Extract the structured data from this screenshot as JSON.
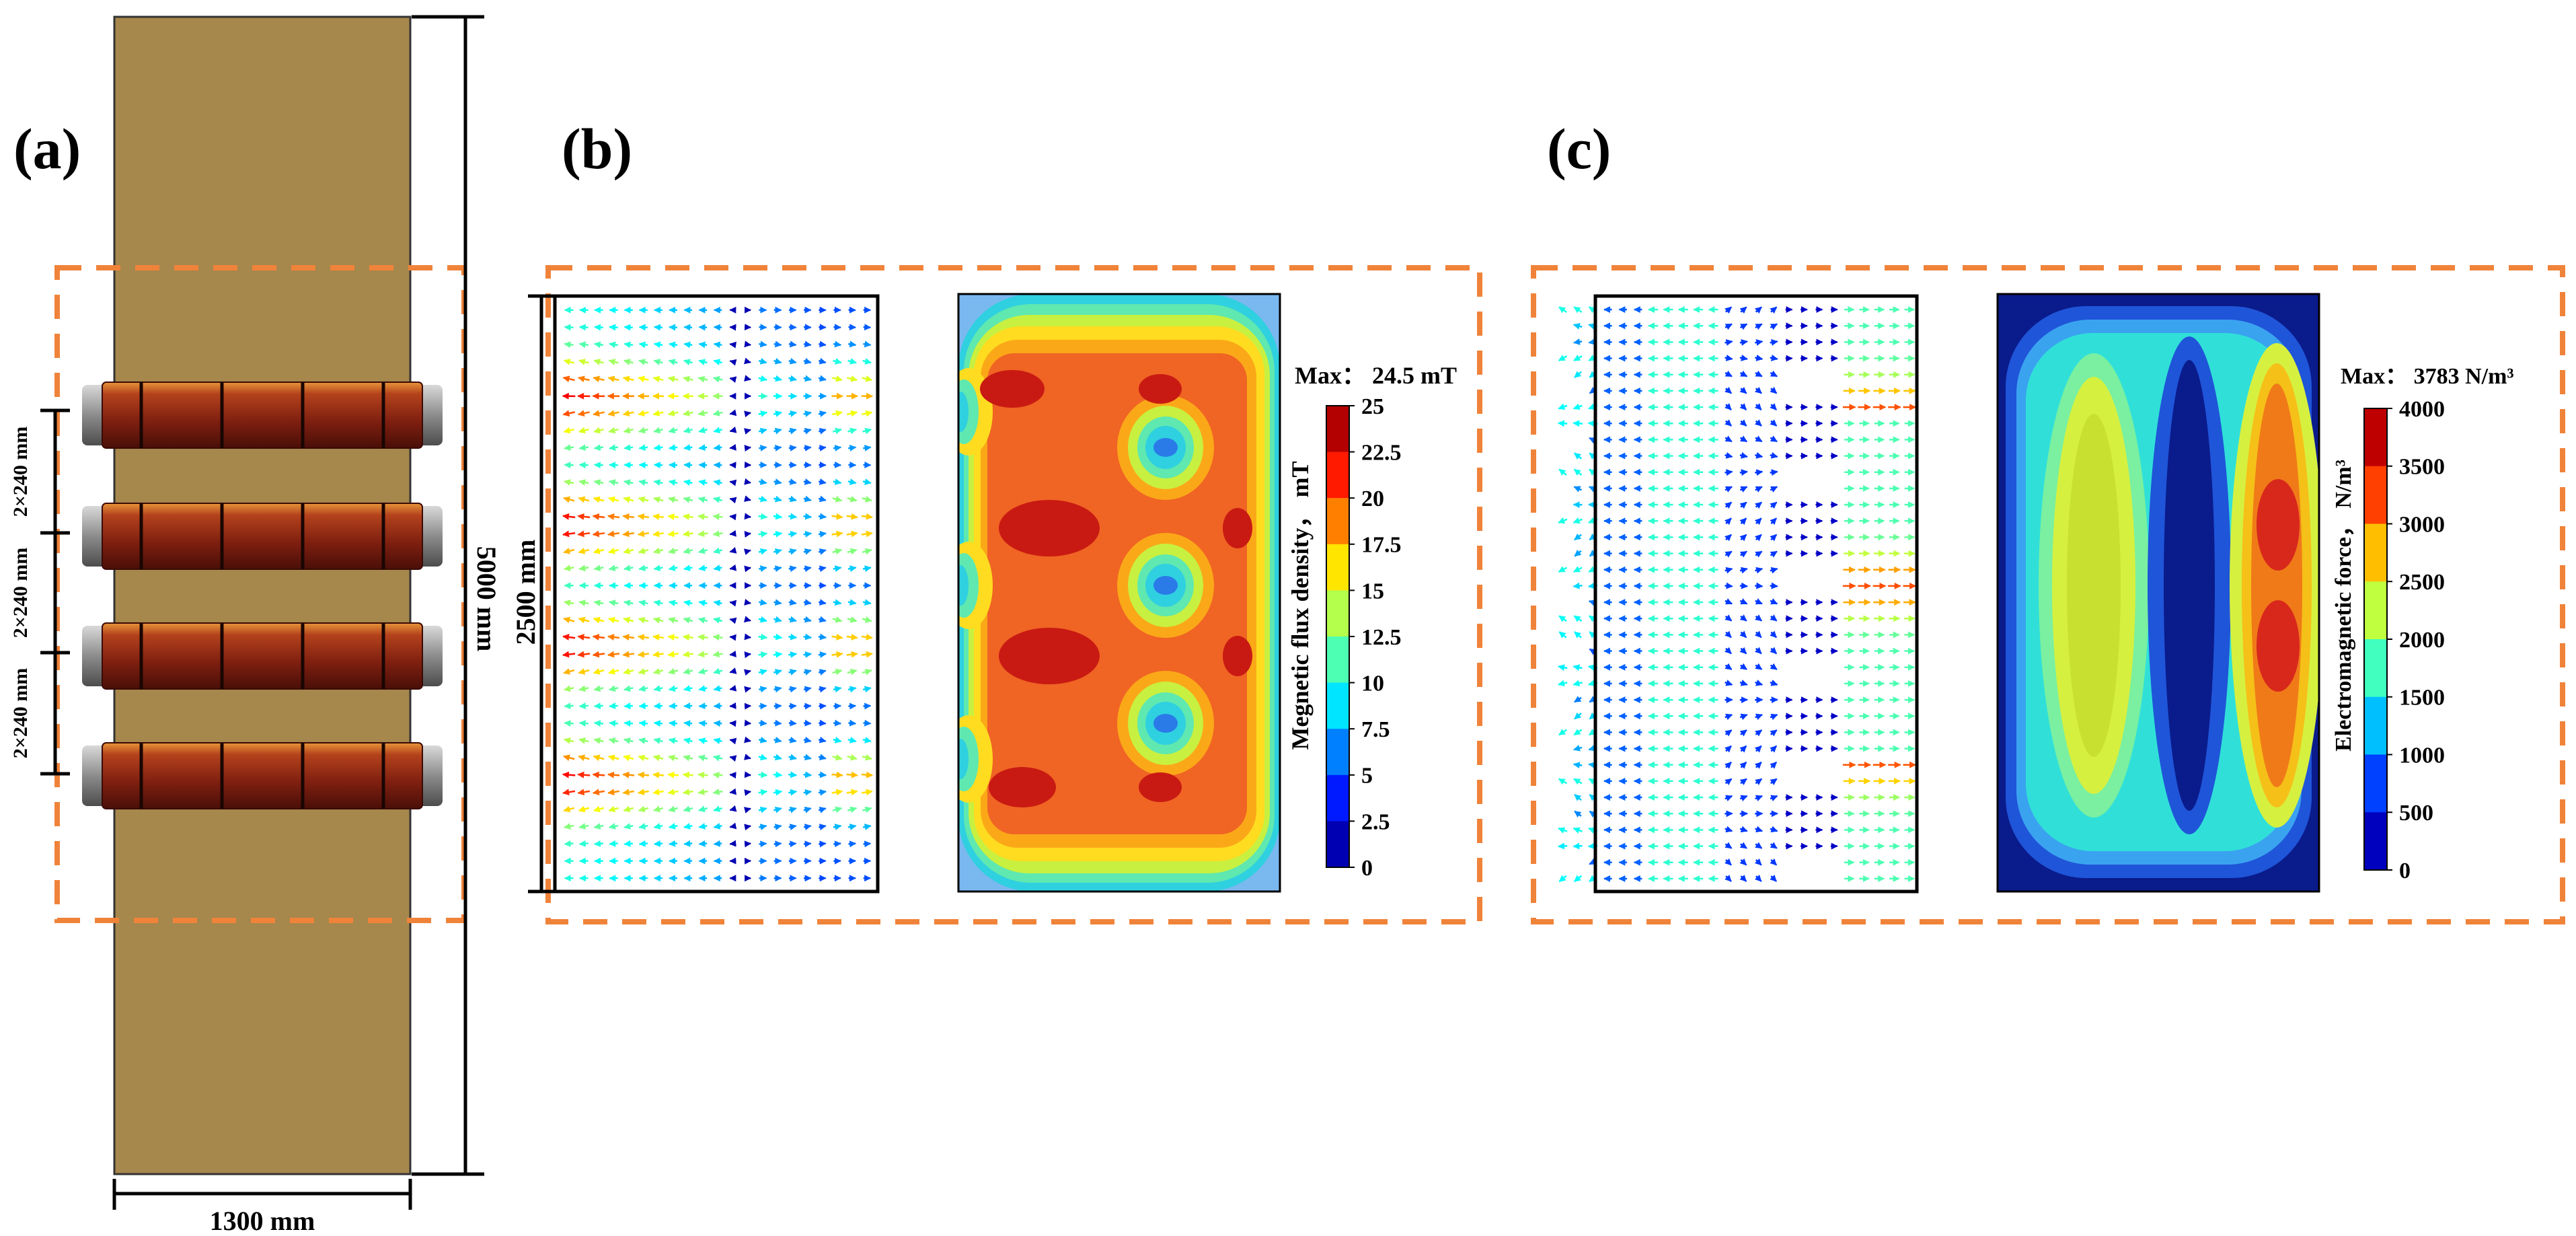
{
  "panels": {
    "a": {
      "label": "(a)",
      "dim_length": "5000 mm",
      "dim_width": "1300 mm",
      "spacing_labels": [
        "2×240 mm",
        "2×240 mm",
        "2×240 mm"
      ],
      "colors": {
        "slab": "#a6874c",
        "coil": "#8a2412",
        "frame": "#f0833a"
      }
    },
    "b": {
      "label": "(b)",
      "dim_height": "2500 mm",
      "max_text": "Max： 24.5 mT",
      "colorbar": {
        "title": "Megnetic flux density， mT",
        "ticks": [
          "25",
          "22.5",
          "20",
          "17.5",
          "15",
          "12.5",
          "10",
          "7.5",
          "5",
          "2.5",
          "0"
        ]
      }
    },
    "c": {
      "label": "(c)",
      "max_text": "Max： 3783 N/m³",
      "colorbar": {
        "title": "Electromagnetic force， N/m³",
        "ticks": [
          "4000",
          "3500",
          "3000",
          "2500",
          "2000",
          "1500",
          "1000",
          "500",
          "0"
        ]
      }
    }
  }
}
